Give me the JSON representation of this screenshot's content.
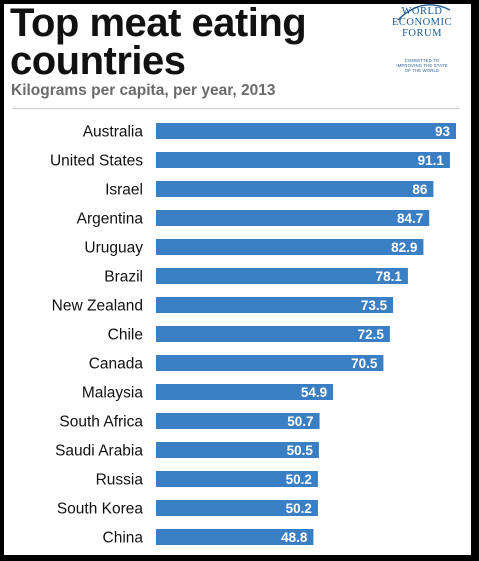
{
  "header": {
    "title_line1": "Top meat eating",
    "title_line2": "countries",
    "subtitle": "Kilograms per capita, per year, 2013"
  },
  "logo": {
    "line1": "WORLD",
    "line2": "ECONOMIC",
    "line3": "FORUM",
    "tagline1": "COMMITTED TO",
    "tagline2": "IMPROVING THE STATE",
    "tagline3": "OF THE WORLD",
    "color": "#1c5a92"
  },
  "chart_data": {
    "type": "bar",
    "orientation": "horizontal",
    "title": "Top meat eating countries",
    "subtitle": "Kilograms per capita, per year, 2013",
    "categories": [
      "Australia",
      "United States",
      "Israel",
      "Argentina",
      "Uruguay",
      "Brazil",
      "New Zealand",
      "Chile",
      "Canada",
      "Malaysia",
      "South Africa",
      "Saudi Arabia",
      "Russia",
      "South Korea",
      "China"
    ],
    "value_labels": [
      "93",
      "91.1",
      "86",
      "84.7",
      "82.9",
      "78.1",
      "73.5",
      "72.5",
      "70.5",
      "54.9",
      "50.7",
      "50.5",
      "50.2",
      "50.2",
      "48.8"
    ],
    "values": [
      93,
      91.1,
      86,
      84.7,
      82.9,
      78.1,
      73.5,
      72.5,
      70.5,
      54.9,
      50.7,
      50.5,
      50.2,
      50.2,
      48.8
    ],
    "xlim": [
      0,
      93
    ],
    "grid": false,
    "bar_color": "#3a7fc4",
    "label_color": "#ffffff"
  }
}
